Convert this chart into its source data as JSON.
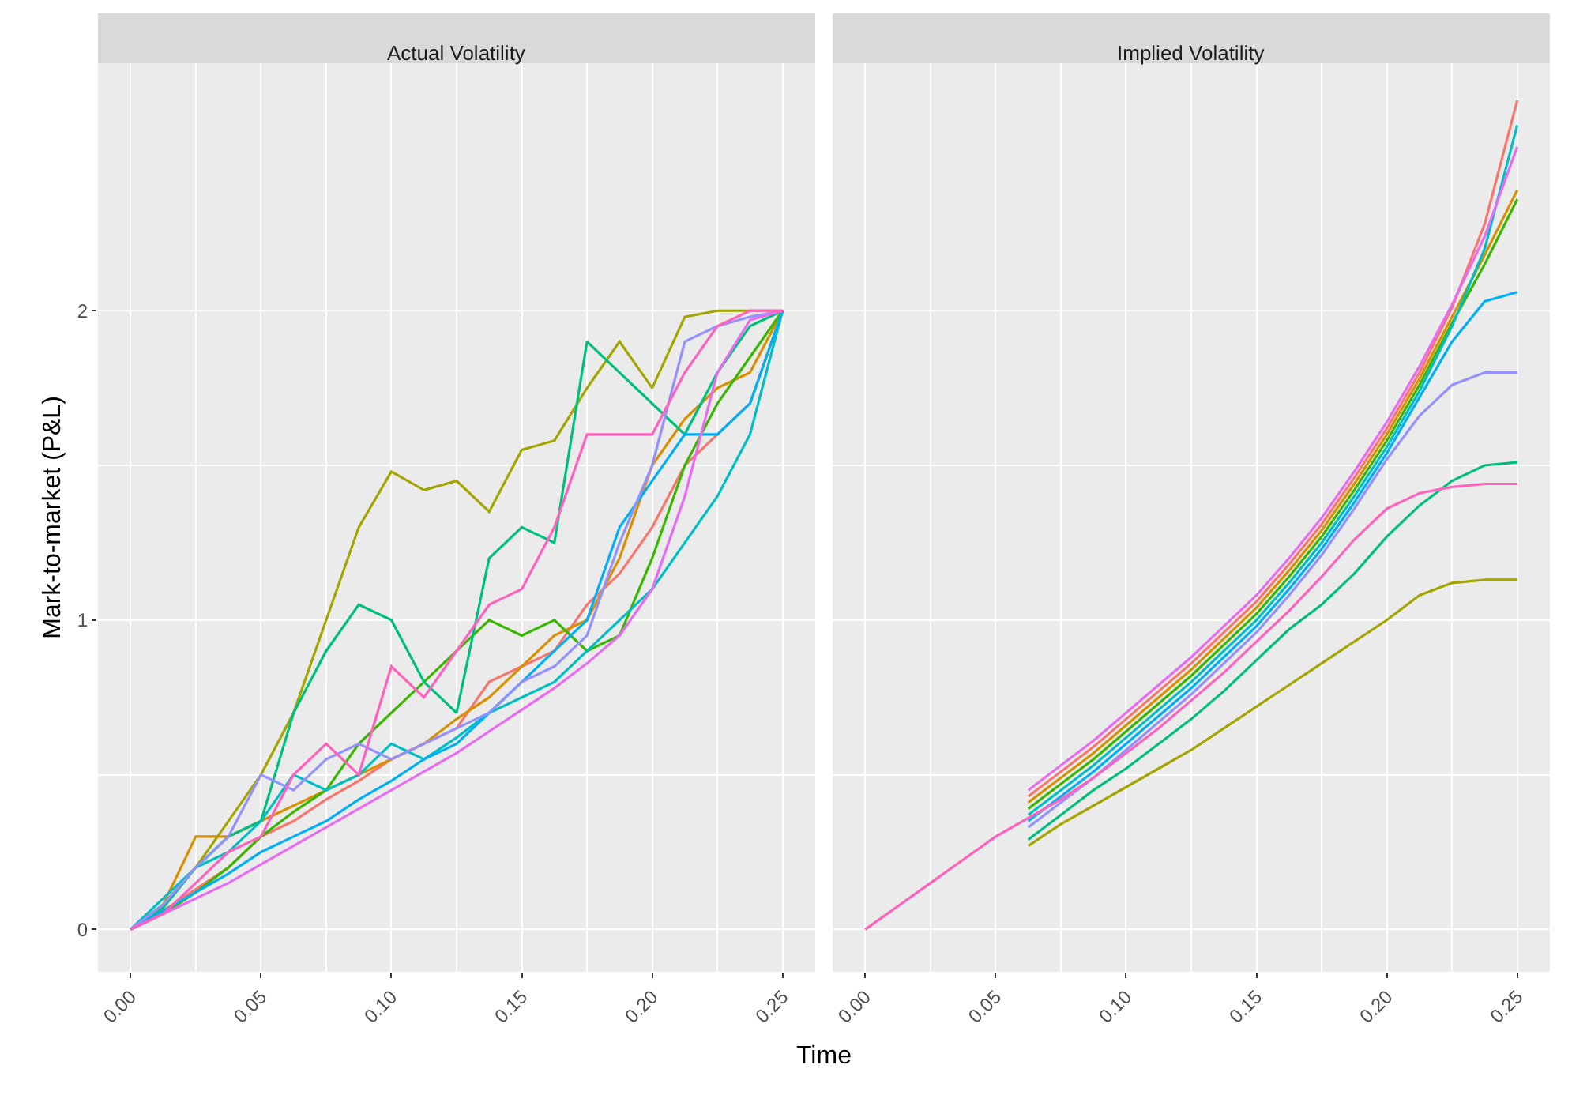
{
  "chart_data": [
    {
      "type": "line",
      "title": "Actual Volatility",
      "xlabel": "Time",
      "ylabel": "Mark-to-market (P&L)",
      "grid": true,
      "x": [
        0,
        0.0125,
        0.025,
        0.0375,
        0.05,
        0.0625,
        0.075,
        0.0875,
        0.1,
        0.1125,
        0.125,
        0.1375,
        0.15,
        0.1625,
        0.175,
        0.1875,
        0.2,
        0.2125,
        0.225,
        0.2375,
        0.25
      ],
      "xlim": [
        -0.0125,
        0.2625
      ],
      "xticks": [
        {
          "value": 0,
          "label": "0.00"
        },
        {
          "value": 0.05,
          "label": "0.05"
        },
        {
          "value": 0.1,
          "label": "0.10"
        },
        {
          "value": 0.15,
          "label": "0.15"
        },
        {
          "value": 0.2,
          "label": "0.20"
        },
        {
          "value": 0.25,
          "label": "0.25"
        }
      ],
      "ylim": [
        -0.137,
        2.8
      ],
      "yticks": [
        0,
        1,
        2
      ],
      "series": [
        {
          "color": "#F8766D",
          "values": [
            0,
            0.06,
            0.13,
            0.2,
            0.3,
            0.35,
            0.42,
            0.48,
            0.55,
            0.6,
            0.65,
            0.8,
            0.85,
            0.9,
            1.05,
            1.15,
            1.3,
            1.5,
            1.6,
            1.7,
            2.0
          ]
        },
        {
          "color": "#D89000",
          "values": [
            0,
            0.08,
            0.3,
            0.3,
            0.35,
            0.4,
            0.45,
            0.5,
            0.55,
            0.6,
            0.68,
            0.75,
            0.85,
            0.95,
            1.0,
            1.2,
            1.5,
            1.65,
            1.75,
            1.8,
            2.0
          ]
        },
        {
          "color": "#A3A500",
          "values": [
            0,
            0.08,
            0.2,
            0.35,
            0.5,
            0.7,
            1.0,
            1.3,
            1.48,
            1.42,
            1.45,
            1.35,
            1.55,
            1.58,
            1.75,
            1.9,
            1.75,
            1.98,
            2.0,
            2.0,
            2.0
          ]
        },
        {
          "color": "#39B600",
          "values": [
            0,
            0.05,
            0.12,
            0.2,
            0.3,
            0.38,
            0.45,
            0.6,
            0.7,
            0.8,
            0.9,
            1.0,
            0.95,
            1.0,
            0.9,
            0.95,
            1.2,
            1.5,
            1.7,
            1.85,
            2.0
          ]
        },
        {
          "color": "#00BF7D",
          "values": [
            0,
            0.07,
            0.2,
            0.3,
            0.35,
            0.7,
            0.9,
            1.05,
            1.0,
            0.8,
            0.7,
            1.2,
            1.3,
            1.25,
            1.9,
            1.8,
            1.7,
            1.6,
            1.8,
            1.95,
            2.0
          ]
        },
        {
          "color": "#00BFC4",
          "values": [
            0,
            0.1,
            0.2,
            0.25,
            0.35,
            0.5,
            0.45,
            0.5,
            0.6,
            0.55,
            0.62,
            0.7,
            0.75,
            0.8,
            0.9,
            1.0,
            1.1,
            1.25,
            1.4,
            1.6,
            2.0
          ]
        },
        {
          "color": "#00B0F6",
          "values": [
            0,
            0.06,
            0.12,
            0.18,
            0.25,
            0.3,
            0.35,
            0.42,
            0.48,
            0.55,
            0.6,
            0.7,
            0.8,
            0.9,
            1.0,
            1.3,
            1.45,
            1.6,
            1.6,
            1.7,
            2.0
          ]
        },
        {
          "color": "#9590FF",
          "values": [
            0,
            0.08,
            0.2,
            0.3,
            0.5,
            0.45,
            0.55,
            0.6,
            0.55,
            0.6,
            0.65,
            0.7,
            0.8,
            0.85,
            0.95,
            1.25,
            1.5,
            1.9,
            1.95,
            1.98,
            2.0
          ]
        },
        {
          "color": "#E76BF3",
          "values": [
            0,
            0.05,
            0.1,
            0.15,
            0.21,
            0.27,
            0.33,
            0.39,
            0.45,
            0.51,
            0.57,
            0.64,
            0.71,
            0.78,
            0.86,
            0.95,
            1.1,
            1.4,
            1.8,
            1.97,
            2.0
          ]
        },
        {
          "color": "#FF62BC",
          "values": [
            0,
            0.05,
            0.15,
            0.25,
            0.3,
            0.5,
            0.6,
            0.5,
            0.85,
            0.75,
            0.9,
            1.05,
            1.1,
            1.3,
            1.6,
            1.6,
            1.6,
            1.8,
            1.95,
            2.0,
            2.0
          ]
        }
      ]
    },
    {
      "type": "line",
      "title": "Implied Volatility",
      "grid": true,
      "tick_labels": "x",
      "x": [
        0,
        0.0125,
        0.025,
        0.0375,
        0.05,
        0.0625,
        0.075,
        0.0875,
        0.1,
        0.1125,
        0.125,
        0.1375,
        0.15,
        0.1625,
        0.175,
        0.1875,
        0.2,
        0.2125,
        0.225,
        0.2375,
        0.25
      ],
      "xlim": [
        -0.0125,
        0.2625
      ],
      "xticks": [
        {
          "value": 0,
          "label": "0.00"
        },
        {
          "value": 0.05,
          "label": "0.05"
        },
        {
          "value": 0.1,
          "label": "0.10"
        },
        {
          "value": 0.15,
          "label": "0.15"
        },
        {
          "value": 0.2,
          "label": "0.20"
        },
        {
          "value": 0.25,
          "label": "0.25"
        }
      ],
      "ylim": [
        -0.137,
        2.8
      ],
      "yticks": [
        0,
        1,
        2
      ],
      "series": [
        {
          "color": "#F8766D",
          "values": [
            null,
            null,
            null,
            null,
            null,
            0.43,
            0.51,
            0.59,
            0.68,
            0.77,
            0.86,
            0.96,
            1.06,
            1.18,
            1.31,
            1.46,
            1.62,
            1.8,
            2.01,
            2.28,
            2.68
          ]
        },
        {
          "color": "#D89000",
          "values": [
            null,
            null,
            null,
            null,
            null,
            0.41,
            0.49,
            0.57,
            0.66,
            0.75,
            0.84,
            0.94,
            1.04,
            1.16,
            1.29,
            1.44,
            1.6,
            1.78,
            1.98,
            2.18,
            2.39
          ]
        },
        {
          "color": "#A3A500",
          "values": [
            null,
            null,
            null,
            null,
            null,
            0.27,
            0.34,
            0.4,
            0.46,
            0.52,
            0.58,
            0.65,
            0.72,
            0.79,
            0.86,
            0.93,
            1.0,
            1.08,
            1.12,
            1.13,
            1.13
          ]
        },
        {
          "color": "#39B600",
          "values": [
            null,
            null,
            null,
            null,
            null,
            0.39,
            0.47,
            0.55,
            0.64,
            0.73,
            0.82,
            0.92,
            1.02,
            1.14,
            1.27,
            1.42,
            1.58,
            1.76,
            1.96,
            2.15,
            2.36
          ]
        },
        {
          "color": "#00BF7D",
          "values": [
            null,
            null,
            null,
            null,
            null,
            0.29,
            0.37,
            0.45,
            0.52,
            0.6,
            0.68,
            0.77,
            0.87,
            0.97,
            1.05,
            1.15,
            1.27,
            1.37,
            1.45,
            1.5,
            1.51
          ]
        },
        {
          "color": "#00BFC4",
          "values": [
            null,
            null,
            null,
            null,
            null,
            0.37,
            0.45,
            0.53,
            0.62,
            0.71,
            0.8,
            0.9,
            1.0,
            1.12,
            1.25,
            1.4,
            1.56,
            1.74,
            1.95,
            2.2,
            2.6
          ]
        },
        {
          "color": "#00B0F6",
          "values": [
            null,
            null,
            null,
            null,
            null,
            0.35,
            0.43,
            0.51,
            0.6,
            0.69,
            0.78,
            0.88,
            0.98,
            1.1,
            1.23,
            1.38,
            1.54,
            1.72,
            1.9,
            2.03,
            2.06
          ]
        },
        {
          "color": "#9590FF",
          "values": [
            null,
            null,
            null,
            null,
            null,
            0.33,
            0.41,
            0.49,
            0.58,
            0.67,
            0.76,
            0.86,
            0.96,
            1.08,
            1.21,
            1.36,
            1.52,
            1.66,
            1.76,
            1.8,
            1.8
          ]
        },
        {
          "color": "#E76BF3",
          "values": [
            null,
            null,
            null,
            null,
            null,
            0.45,
            0.53,
            0.61,
            0.7,
            0.79,
            0.88,
            0.98,
            1.08,
            1.2,
            1.33,
            1.48,
            1.64,
            1.82,
            2.02,
            2.24,
            2.53
          ]
        },
        {
          "color": "#FF62BC",
          "values": [
            0,
            0.075,
            0.15,
            0.225,
            0.3,
            0.36,
            0.42,
            0.49,
            0.57,
            0.65,
            0.74,
            0.83,
            0.93,
            1.03,
            1.14,
            1.26,
            1.36,
            1.41,
            1.43,
            1.44,
            1.44
          ]
        }
      ]
    }
  ]
}
